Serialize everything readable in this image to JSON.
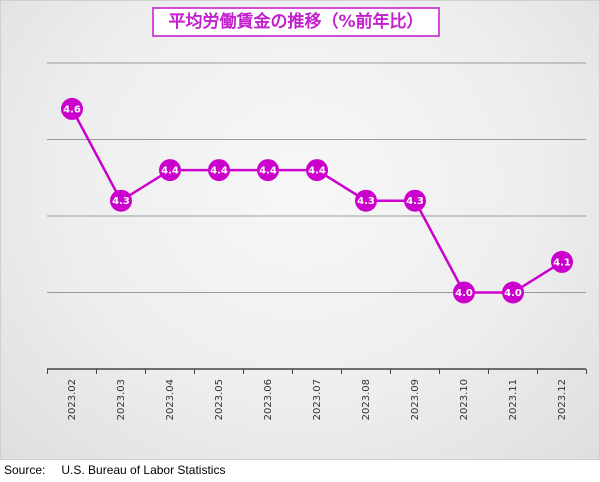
{
  "chart_data": {
    "type": "line",
    "title": "平均労働賃金の推移（%前年比）",
    "categories": [
      "2023.02",
      "2023.03",
      "2023.04",
      "2023.05",
      "2023.06",
      "2023.07",
      "2023.08",
      "2023.09",
      "2023.10",
      "2023.11",
      "2023.12"
    ],
    "series": [
      {
        "values": [
          4.6,
          4.3,
          4.4,
          4.4,
          4.4,
          4.4,
          4.3,
          4.3,
          4.0,
          4.0,
          4.1
        ]
      }
    ],
    "ylim": [
      3.75,
      4.75
    ],
    "grid": true,
    "colors": {
      "line": "#cc00cc",
      "marker": "#cc00cc",
      "label_text": "#ffffff",
      "grid": "#9a9a9a",
      "title": "#c41fcf"
    }
  },
  "source": {
    "label": "Source:",
    "text": "U.S. Bureau of Labor Statistics"
  }
}
